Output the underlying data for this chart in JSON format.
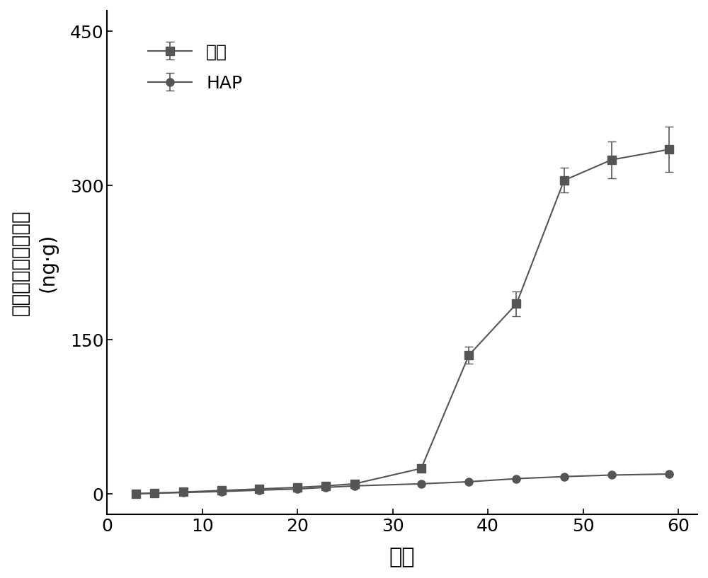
{
  "control_x": [
    3,
    5,
    8,
    12,
    16,
    20,
    23,
    26,
    33,
    38,
    43,
    48,
    53,
    59
  ],
  "control_y": [
    0.5,
    1.0,
    2.0,
    3.5,
    5.0,
    6.5,
    8.0,
    10.0,
    25.0,
    135.0,
    185.0,
    305.0,
    325.0,
    335.0
  ],
  "control_yerr": [
    0,
    0,
    0,
    0,
    0,
    0,
    0,
    0,
    0,
    8.0,
    12.0,
    12.0,
    18.0,
    22.0
  ],
  "hap_x": [
    3,
    5,
    8,
    12,
    16,
    20,
    23,
    26,
    33,
    38,
    43,
    48,
    53,
    59
  ],
  "hap_y": [
    0.3,
    0.8,
    1.5,
    2.5,
    3.8,
    5.0,
    6.5,
    8.0,
    10.0,
    12.0,
    15.0,
    17.0,
    18.5,
    19.5
  ],
  "hap_yerr": [
    0,
    0,
    0,
    0,
    0,
    0,
    0,
    0,
    0,
    0,
    0,
    0,
    0,
    0
  ],
  "xlabel": "天数",
  "ylabel_line1": "氧化亚氮累计排放量",
  "ylabel_line2": "(ng·g)",
  "legend_control": "对照",
  "legend_hap": "HAP",
  "color": "#555555",
  "xlim": [
    0,
    62
  ],
  "ylim": [
    -20,
    470
  ],
  "yticks": [
    0,
    150,
    300,
    450
  ],
  "xticks": [
    0,
    10,
    20,
    30,
    40,
    50,
    60
  ],
  "marker_control": "s",
  "marker_hap": "o",
  "markersize": 8,
  "linewidth": 1.5,
  "figsize": [
    10.0,
    8.17
  ],
  "dpi": 100
}
